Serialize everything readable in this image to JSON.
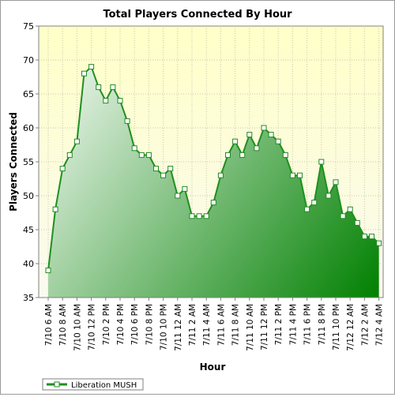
{
  "chart_data": {
    "type": "area",
    "title": "Total Players Connected By Hour",
    "xlabel": "Hour",
    "ylabel": "Players Connected",
    "ylim": [
      35,
      75
    ],
    "yticks": [
      35,
      40,
      45,
      50,
      55,
      60,
      65,
      70,
      75
    ],
    "grid": true,
    "legend_position": "bottom-left",
    "colors": {
      "plot_background_top": "#ffffc8",
      "plot_background_bottom": "#fafaf0",
      "area_light": "#ffffff",
      "area_dark": "#008000",
      "line": "#1f8f1f",
      "marker_fill": "#ffffff",
      "marker_stroke": "#228b22"
    },
    "tick_labels": [
      "7/10 6 AM",
      "7/10 8 AM",
      "7/10 10 AM",
      "7/10 12 PM",
      "7/10 2 PM",
      "7/10 4 PM",
      "7/10 6 PM",
      "7/10 8 PM",
      "7/10 10 PM",
      "7/11 12 AM",
      "7/11 2 AM",
      "7/11 4 AM",
      "7/11 6 AM",
      "7/11 8 AM",
      "7/11 10 AM",
      "7/11 12 PM",
      "7/11 2 PM",
      "7/11 4 PM",
      "7/11 6 PM",
      "7/11 8 PM",
      "7/11 10 PM",
      "7/12 12 AM",
      "7/12 2 AM",
      "7/12 4 AM"
    ],
    "series": [
      {
        "name": "Liberation MUSH",
        "values": [
          39,
          48,
          54,
          56,
          58,
          68,
          69,
          66,
          64,
          66,
          64,
          61,
          57,
          56,
          56,
          54,
          53,
          54,
          50,
          51,
          47,
          47,
          47,
          49,
          53,
          56,
          58,
          56,
          59,
          57,
          60,
          59,
          58,
          56,
          53,
          53,
          48,
          49,
          55,
          50,
          52,
          47,
          48,
          46,
          44,
          44,
          43
        ]
      }
    ]
  }
}
